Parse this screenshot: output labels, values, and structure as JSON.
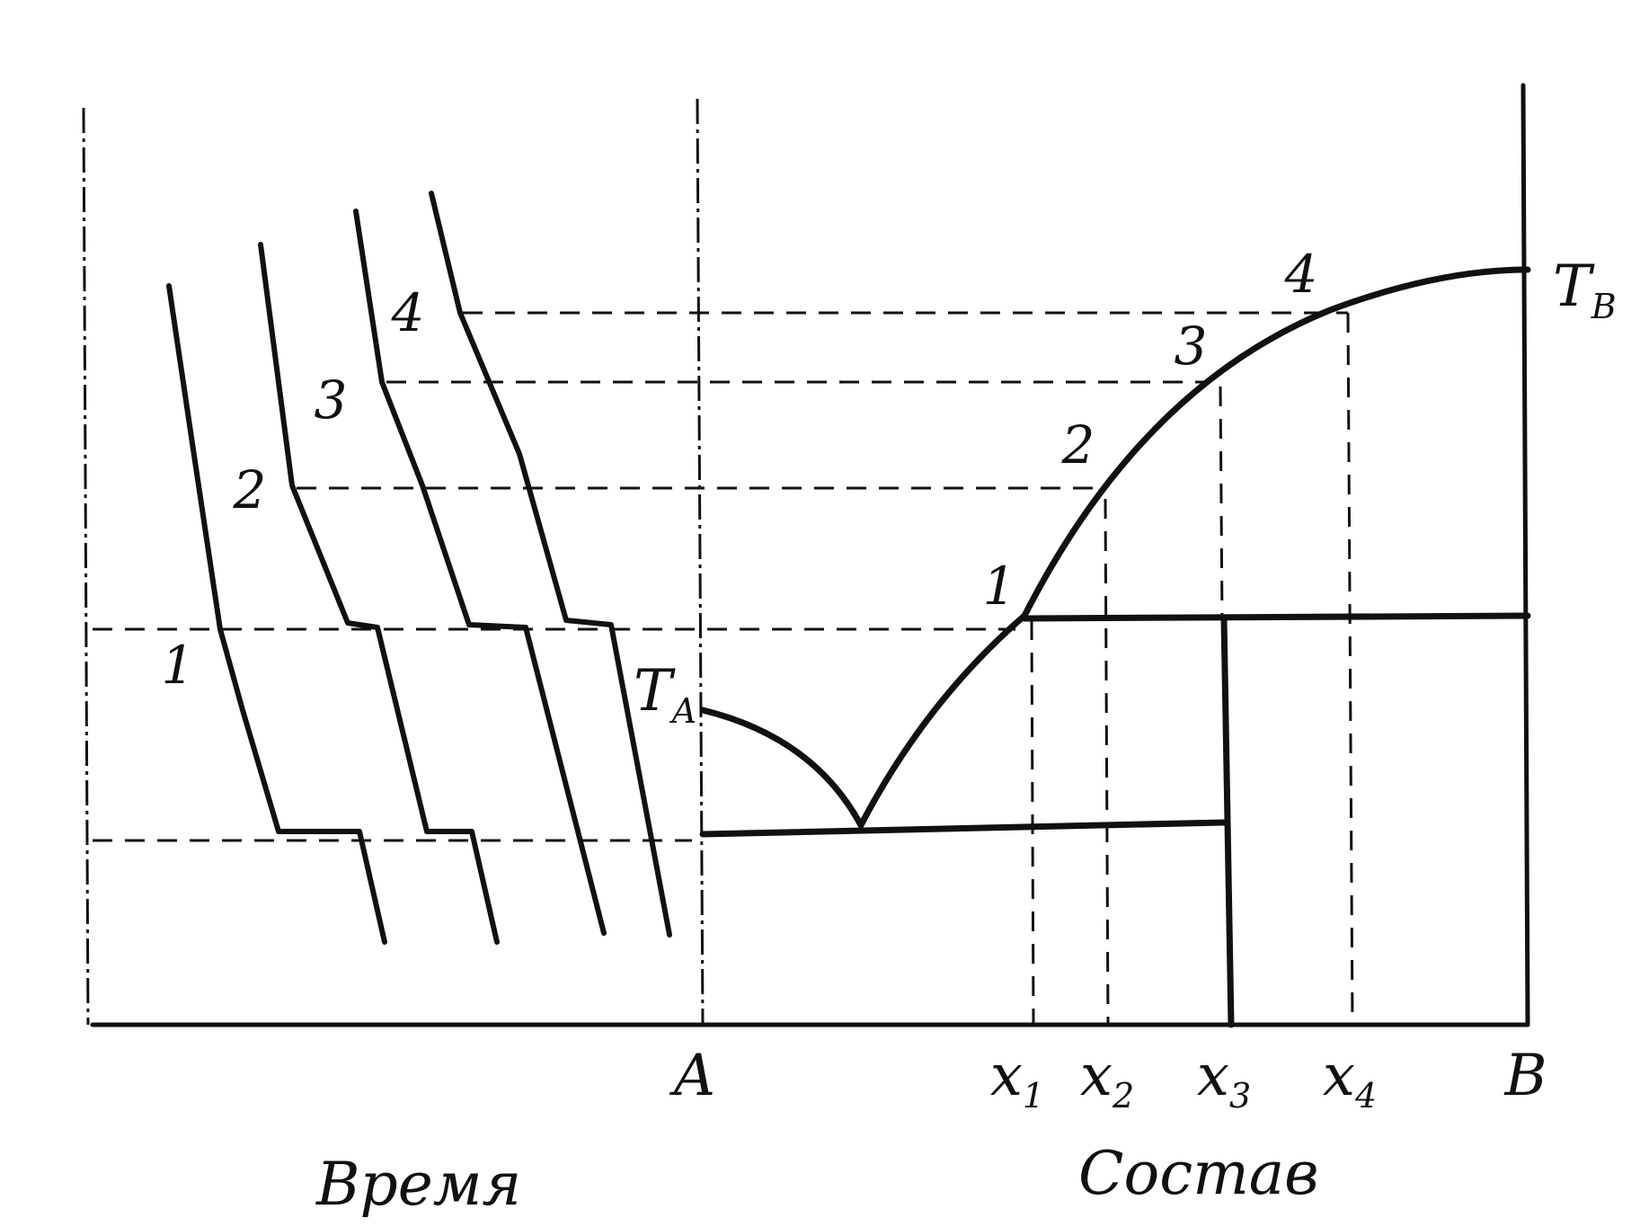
{
  "labels": {
    "time_axis": "Время",
    "composition_axis": "Состав",
    "component_a": "A",
    "component_b": "B",
    "temp_a": "T",
    "temp_a_sub": "A",
    "temp_b": "T",
    "temp_b_sub": "B",
    "x_symbol": "x",
    "x1_sub": "1",
    "x2_sub": "2",
    "x3_sub": "3",
    "x4_sub": "4"
  },
  "cooling_curves": [
    "1",
    "2",
    "3",
    "4"
  ],
  "liquidus_points": [
    "1",
    "2",
    "3",
    "4"
  ]
}
